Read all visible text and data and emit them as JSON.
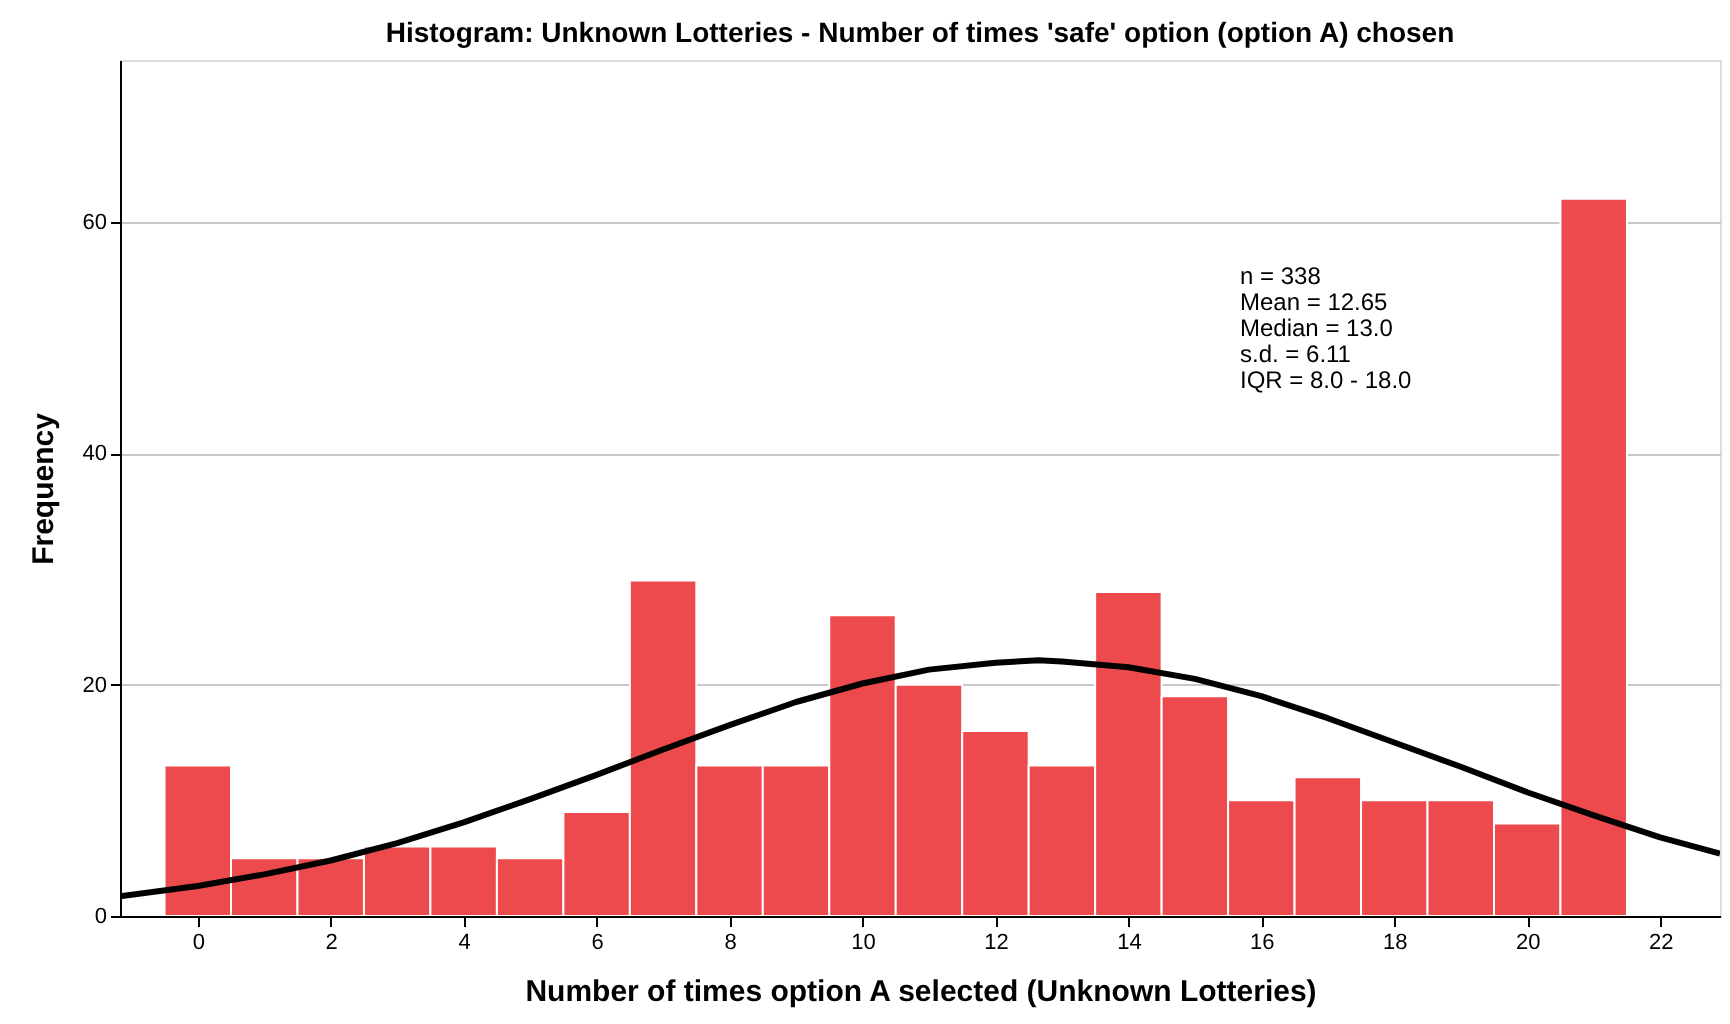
{
  "chart_data": {
    "type": "histogram",
    "title": "Histogram: Unknown Lotteries - Number of times 'safe' option (option A) chosen",
    "xlabel": "Number of times option A selected (Unknown Lotteries)",
    "ylabel": "Frequency",
    "bins": [
      -0.5,
      0.5,
      1.5,
      2.5,
      3.5,
      4.5,
      5.5,
      6.5,
      7.5,
      8.5,
      9.5,
      10.5,
      11.5,
      12.5,
      13.5,
      14.5,
      15.5,
      16.5,
      17.5,
      18.5,
      19.5,
      20.5,
      21.5
    ],
    "values": [
      13,
      5,
      5,
      6,
      6,
      5,
      9,
      29,
      13,
      13,
      26,
      20,
      16,
      13,
      28,
      19,
      10,
      12,
      10,
      10,
      8,
      62
    ],
    "color": "#ec4a4c",
    "series": [
      {
        "type": "line",
        "color": "#000000",
        "x": [
          -1.17,
          0,
          1,
          2,
          3,
          4,
          5,
          6,
          7,
          8,
          9,
          10,
          11,
          12,
          12.65,
          13,
          14,
          15,
          16,
          17,
          18,
          19,
          20,
          21,
          22,
          22.9
        ],
        "values": [
          1.7,
          2.6,
          3.6,
          4.8,
          6.3,
          8.1,
          10.1,
          12.2,
          14.4,
          16.5,
          18.5,
          20.1,
          21.3,
          21.9,
          22.1,
          22.0,
          21.5,
          20.5,
          19.0,
          17.1,
          15.0,
          12.9,
          10.7,
          8.7,
          6.8,
          5.4
        ]
      }
    ],
    "xlim": [
      -1.17,
      22.9
    ],
    "ylim": [
      0,
      74
    ],
    "xticks": [
      0,
      2,
      4,
      6,
      8,
      10,
      12,
      14,
      16,
      18,
      20,
      22
    ],
    "yticks": [
      0,
      20,
      40,
      60
    ],
    "grid": "y",
    "annotations": [
      "n = 338",
      "Mean = 12.65",
      "Median = 13.0",
      "s.d. = 6.11",
      "IQR = 8.0 - 18.0"
    ]
  }
}
